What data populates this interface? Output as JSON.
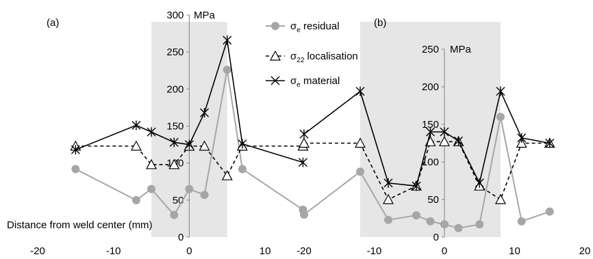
{
  "chart_data": [
    {
      "panel": "(a)",
      "type": "line",
      "x_label": "Distance from weld center (mm)",
      "y_unit": "MPa",
      "xlim": [
        -20,
        20
      ],
      "ylim": [
        0,
        300
      ],
      "x_ticks": [
        -20,
        -10,
        0,
        10
      ],
      "y_ticks": [
        0,
        50,
        100,
        150,
        200,
        250,
        300
      ],
      "shaded_region": [
        -5,
        5
      ],
      "series": [
        {
          "key": "residual",
          "points": [
            [
              -15,
              92
            ],
            [
              -7,
              50
            ],
            [
              -5,
              65
            ],
            [
              -2,
              30
            ],
            [
              0,
              65
            ],
            [
              2,
              57
            ],
            [
              5,
              226
            ],
            [
              7,
              92
            ],
            [
              15,
              37
            ]
          ]
        },
        {
          "key": "localisation",
          "points": [
            [
              -15,
              123
            ],
            [
              -7,
              123
            ],
            [
              -5,
              98
            ],
            [
              -2,
              98
            ],
            [
              0,
              123
            ],
            [
              2,
              123
            ],
            [
              5,
              83
            ],
            [
              7,
              123
            ],
            [
              15,
              123
            ]
          ]
        },
        {
          "key": "material",
          "points": [
            [
              -15,
              118
            ],
            [
              -7,
              151
            ],
            [
              -5,
              142
            ],
            [
              -2,
              128
            ],
            [
              0,
              125
            ],
            [
              2,
              168
            ],
            [
              5,
              266
            ],
            [
              7,
              126
            ],
            [
              15,
              101
            ]
          ]
        }
      ]
    },
    {
      "panel": "(b)",
      "type": "line",
      "x_label": "",
      "y_unit": "MPa",
      "xlim": [
        -20,
        20
      ],
      "ylim": [
        0,
        250
      ],
      "x_ticks": [
        -20,
        -10,
        0,
        10,
        20
      ],
      "y_ticks": [
        0,
        50,
        100,
        150,
        200,
        250
      ],
      "shaded_region": [
        -12,
        8
      ],
      "series": [
        {
          "key": "residual",
          "points": [
            [
              -20,
              30
            ],
            [
              -12,
              87
            ],
            [
              -8,
              23
            ],
            [
              -4,
              29
            ],
            [
              -2,
              21
            ],
            [
              0,
              17
            ],
            [
              2,
              12
            ],
            [
              5,
              17
            ],
            [
              8,
              160
            ],
            [
              11,
              21
            ],
            [
              15,
              34
            ]
          ]
        },
        {
          "key": "localisation",
          "points": [
            [
              -20,
              125
            ],
            [
              -12,
              125
            ],
            [
              -8,
              50
            ],
            [
              -4,
              68
            ],
            [
              -2,
              127
            ],
            [
              0,
              127
            ],
            [
              2,
              127
            ],
            [
              5,
              68
            ],
            [
              8,
              50
            ],
            [
              11,
              125
            ],
            [
              15,
              125
            ]
          ]
        },
        {
          "key": "material",
          "points": [
            [
              -20,
              137
            ],
            [
              -12,
              194
            ],
            [
              -8,
              72
            ],
            [
              -4,
              68
            ],
            [
              -2,
              140
            ],
            [
              0,
              140
            ],
            [
              2,
              128
            ],
            [
              5,
              72
            ],
            [
              8,
              194
            ],
            [
              11,
              132
            ],
            [
              15,
              125
            ]
          ]
        }
      ]
    }
  ],
  "legend": [
    {
      "key": "residual",
      "symbol": "σ",
      "sub": "e",
      "text": " residual",
      "color": "#a6a6a6"
    },
    {
      "key": "localisation",
      "symbol": "σ",
      "sub": "22",
      "text": " localisation",
      "color": "#000000"
    },
    {
      "key": "material",
      "symbol": "σ",
      "sub": "e",
      "text": " material",
      "color": "#000000"
    }
  ],
  "shade_color": "#e6e6e6",
  "axis_color": "#808080"
}
